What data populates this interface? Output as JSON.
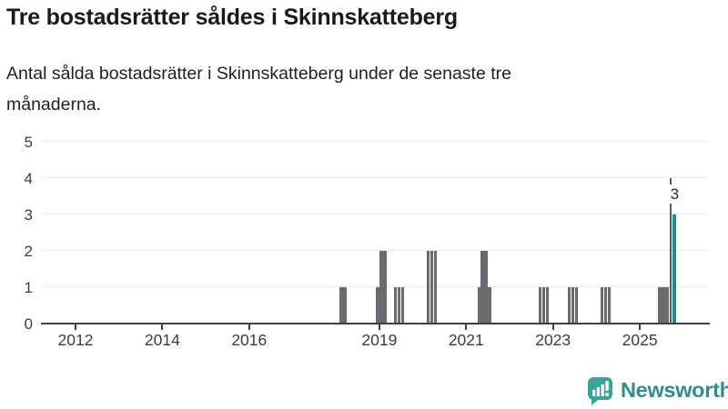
{
  "header": {
    "title": "Tre bostadsrätter såldes i Skinnskatteberg",
    "subtitle_line1": "Antal sålda bostadsrätter i Skinnskatteberg under de senaste tre",
    "subtitle_line2": "månaderna."
  },
  "chart_data": {
    "type": "bar",
    "title": "Tre bostadsrätter såldes i Skinnskatteberg",
    "subtitle": "Antal sålda bostadsrätter i Skinnskatteberg under de senaste tre månaderna.",
    "xlabel": "",
    "ylabel": "",
    "ylim": [
      0,
      5
    ],
    "y_ticks": [
      0,
      1,
      2,
      3,
      4,
      5
    ],
    "x_ticks": [
      2012,
      2014,
      2016,
      2019,
      2021,
      2023,
      2025
    ],
    "x_range_years": [
      2011.2,
      2026.6
    ],
    "grid": "horizontal",
    "legend": "none",
    "bars": [
      {
        "month": "2018-02",
        "value": 1
      },
      {
        "month": "2018-03",
        "value": 1
      },
      {
        "month": "2018-12",
        "value": 1
      },
      {
        "month": "2019-01",
        "value": 2
      },
      {
        "month": "2019-02",
        "value": 2
      },
      {
        "month": "2019-05",
        "value": 1
      },
      {
        "month": "2019-06",
        "value": 1
      },
      {
        "month": "2019-07",
        "value": 1
      },
      {
        "month": "2020-02",
        "value": 2
      },
      {
        "month": "2020-03",
        "value": 2
      },
      {
        "month": "2020-04",
        "value": 2
      },
      {
        "month": "2021-04",
        "value": 1
      },
      {
        "month": "2021-05",
        "value": 2
      },
      {
        "month": "2021-06",
        "value": 2
      },
      {
        "month": "2021-07",
        "value": 1
      },
      {
        "month": "2022-09",
        "value": 1
      },
      {
        "month": "2022-10",
        "value": 1
      },
      {
        "month": "2022-11",
        "value": 1
      },
      {
        "month": "2023-05",
        "value": 1
      },
      {
        "month": "2023-06",
        "value": 1
      },
      {
        "month": "2023-07",
        "value": 1
      },
      {
        "month": "2024-02",
        "value": 1
      },
      {
        "month": "2024-03",
        "value": 1
      },
      {
        "month": "2024-04",
        "value": 1
      },
      {
        "month": "2025-06",
        "value": 1
      },
      {
        "month": "2025-07",
        "value": 1
      },
      {
        "month": "2025-08",
        "value": 1
      }
    ],
    "highlight_bar": {
      "month": "2025-10",
      "value": 3,
      "label": "3",
      "annotation_line_top_value": 4
    },
    "colors": {
      "bar": "#6a6a70",
      "highlight": "#19908a",
      "annotation_line": "#595a5e",
      "gridline": "#e8e8e8",
      "axis": "#3f3f42",
      "tick_text": "#3c3c3c"
    }
  },
  "footer": {
    "brand": "Newsworthy",
    "logo_icon": "newsworthy-speech-bubble-bar-chart-icon",
    "brand_color": "#2f8e8a",
    "logo_fill": "#3ba39c"
  }
}
